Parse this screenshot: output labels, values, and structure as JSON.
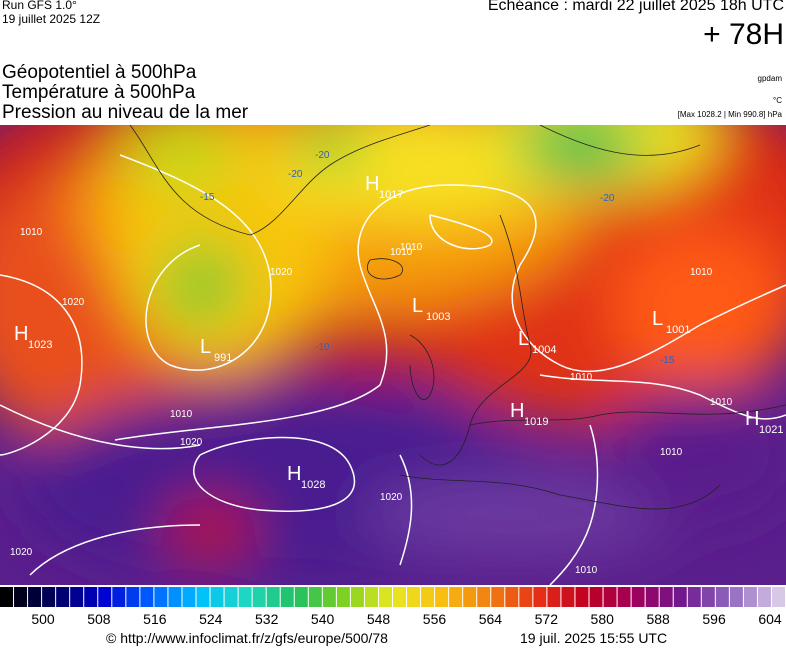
{
  "header": {
    "run": "Run GFS 1.0°",
    "run_date": "19 juillet 2025 12Z",
    "valid": "Echéance : mardi 22 juillet 2025 18h UTC",
    "lead": "+ 78H",
    "fields": [
      "Géopotentiel à 500hPa",
      "Température à 500hPa",
      "Pression au niveau de la mer"
    ],
    "unit_geo": "gpdam",
    "unit_temp": "°C",
    "pressure_range": "[Max 1028.2 | Min 990.8] hPa"
  },
  "map": {
    "centers": [
      {
        "letter": "H",
        "value": 1017
      },
      {
        "letter": "L",
        "value": 1003
      },
      {
        "letter": "L",
        "value": 1004
      },
      {
        "letter": "L",
        "value": 1001
      },
      {
        "letter": "H",
        "value": 1023
      },
      {
        "letter": "L",
        "value": 991
      },
      {
        "letter": "H",
        "value": 1019
      },
      {
        "letter": "H",
        "value": 1021
      },
      {
        "letter": "H",
        "value": 1028
      }
    ],
    "isobar_labels": [
      1010,
      1020,
      1010,
      1010,
      1010,
      1010,
      1020,
      1010,
      1020,
      1020,
      1010,
      1010,
      1010,
      1020
    ],
    "temp_labels": [
      -20,
      -20,
      -20,
      -15,
      -15,
      -10
    ]
  },
  "colorbar": {
    "labels": [
      500,
      508,
      516,
      524,
      532,
      540,
      548,
      556,
      564,
      572,
      580,
      588,
      596,
      604
    ]
  },
  "footer": {
    "url": "© http://www.infoclimat.fr/z/gfs/europe/500/78",
    "generated": "19 juil. 2025 15:55 UTC"
  }
}
